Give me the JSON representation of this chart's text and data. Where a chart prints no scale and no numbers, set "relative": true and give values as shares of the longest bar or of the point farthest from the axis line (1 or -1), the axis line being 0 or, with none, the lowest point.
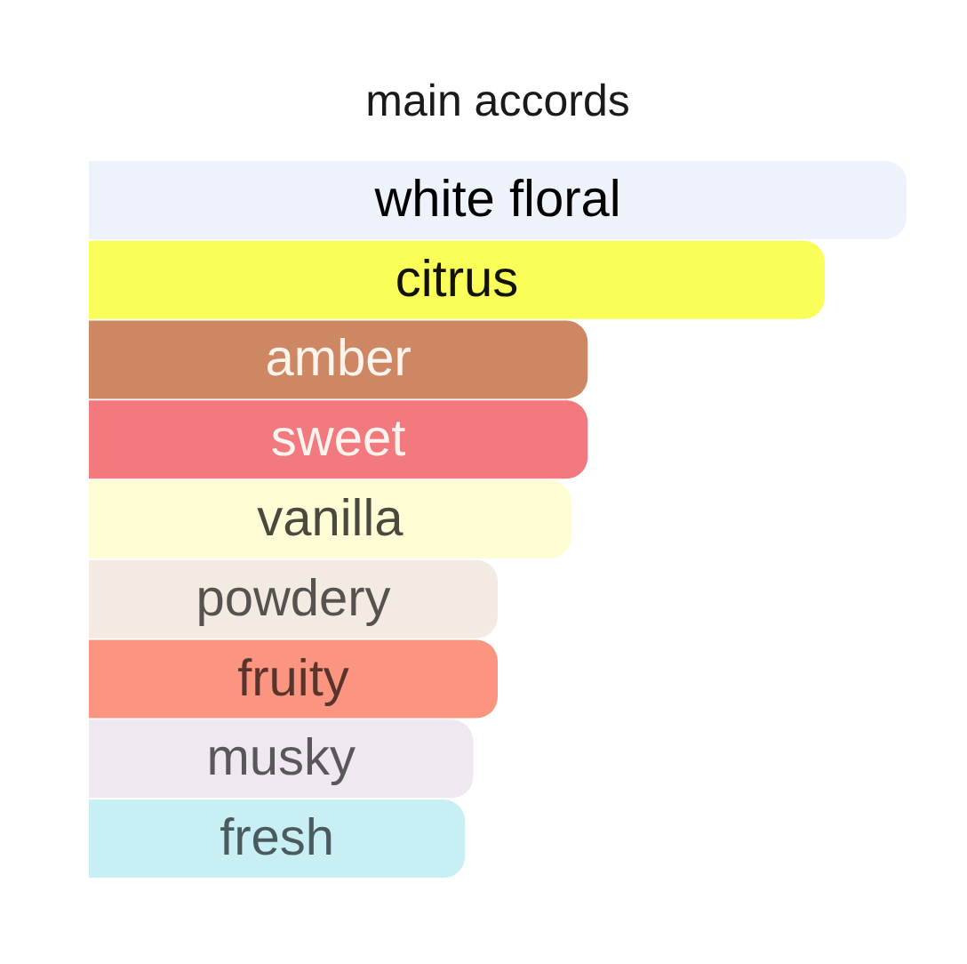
{
  "chart_data": {
    "type": "bar",
    "orientation": "horizontal",
    "relative": true,
    "title": "main accords",
    "categories": [
      "white floral",
      "citrus",
      "amber",
      "sweet",
      "vanilla",
      "powdery",
      "fruity",
      "musky",
      "fresh"
    ],
    "values": [
      1,
      0.9,
      0.61,
      0.61,
      0.59,
      0.5,
      0.5,
      0.47,
      0.46
    ],
    "colors": [
      "#edf2fb",
      "#f9fe58",
      "#cd8762",
      "#f27a7e",
      "#fffdd6",
      "#f3ebe2",
      "#fc957f",
      "#efe8f0",
      "#c7eff4"
    ]
  }
}
